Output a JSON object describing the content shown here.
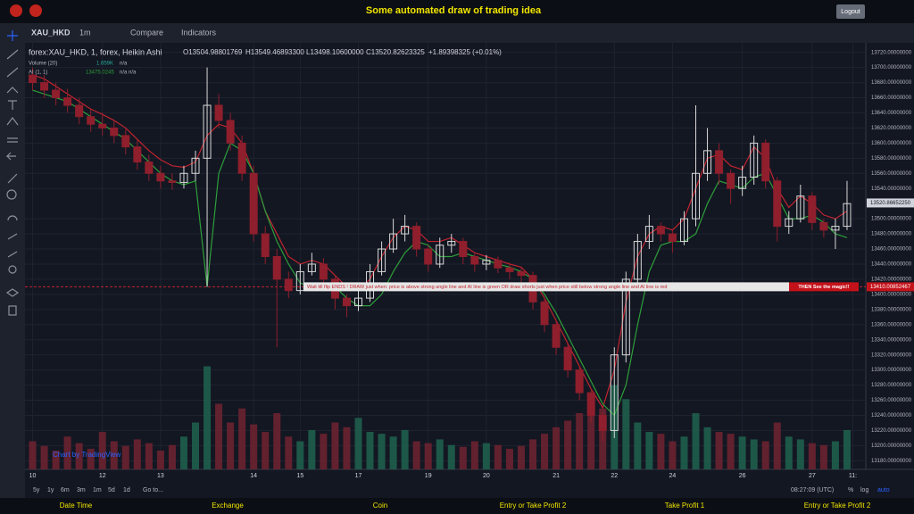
{
  "ui": {
    "title": "Some automated draw of trading idea",
    "logout": "Logout",
    "symbol": "XAU_HKD",
    "interval": "1m",
    "compare": "Compare",
    "indicators": "Indicators",
    "legend": {
      "main": "forex:XAU_HKD, 1, forex, Heikin Ashi",
      "o": "O13504.98801769",
      "h": "H13549.46893300",
      "l": "L13498.10600000",
      "c": "C13520.82623325",
      "chg": "+1.89398325 (+0.01%)",
      "vol": "Volume (20)",
      "vol_val": "1.659K",
      "vol_na": "n/a",
      "ai": "AI (1, 1)",
      "ai_val": "13475.0245",
      "ai_na": "n/a  n/a"
    },
    "ranges": [
      "5y",
      "1y",
      "6m",
      "3m",
      "1m",
      "5d",
      "1d",
      "Go to..."
    ],
    "clock": "08:27:09 (UTC)",
    "pct": "%",
    "log": "log",
    "auto": "auto",
    "watermark": "Chart by TradingView",
    "footer": [
      "Date Time",
      "Exchange",
      "Coin",
      "Entry or Take Profit 2",
      "Take Profit 1",
      "Entry or Take Profit 2"
    ]
  },
  "chart_data": {
    "type": "candlestick",
    "annotation": "Wait till flip ENDS !   DRAW just when:  price is above strong angle line and AI line is green        OR        draw shorts just when price still below strong angle line and AI line is red",
    "annotation_end": "THEN See the magic!!",
    "current_price": {
      "value": 13520.8665225,
      "label": "13520.86652250"
    },
    "level": {
      "value": 13410.00852467,
      "label": "13410.00852467"
    },
    "ylim": [
      13170,
      13730
    ],
    "yticks": [
      {
        "value": 13180,
        "label": "13180.00000000"
      },
      {
        "value": 13200,
        "label": "13200.00000000"
      },
      {
        "value": 13220,
        "label": "13220.00000000"
      },
      {
        "value": 13240,
        "label": "13240.00000000"
      },
      {
        "value": 13260,
        "label": "13260.00000000"
      },
      {
        "value": 13280,
        "label": "13280.00000000"
      },
      {
        "value": 13300,
        "label": "13300.00000000"
      },
      {
        "value": 13320,
        "label": "13320.00000000"
      },
      {
        "value": 13340,
        "label": "13340.00000000"
      },
      {
        "value": 13360,
        "label": "13360.00000000"
      },
      {
        "value": 13380,
        "label": "13380.00000000"
      },
      {
        "value": 13400,
        "label": "13400.00000000"
      },
      {
        "value": 13420,
        "label": "13420.00000000"
      },
      {
        "value": 13440,
        "label": "13440.00000000"
      },
      {
        "value": 13460,
        "label": "13460.00000000"
      },
      {
        "value": 13480,
        "label": "13480.00000000"
      },
      {
        "value": 13500,
        "label": "13500.00000000"
      },
      {
        "value": 13540,
        "label": "13540.00000000"
      },
      {
        "value": 13560,
        "label": "13560.00000000"
      },
      {
        "value": 13580,
        "label": "13580.00000000"
      },
      {
        "value": 13600,
        "label": "13600.00000000"
      },
      {
        "value": 13620,
        "label": "13620.00000000"
      },
      {
        "value": 13640,
        "label": "13640.00000000"
      },
      {
        "value": 13660,
        "label": "13660.00000000"
      },
      {
        "value": 13680,
        "label": "13680.00000000"
      },
      {
        "value": 13700,
        "label": "13700.00000000"
      },
      {
        "value": 13720,
        "label": "13720.00000000"
      }
    ],
    "xlim": [
      -0.5,
      71
    ],
    "xticks": [
      {
        "value": 0,
        "label": "10"
      },
      {
        "value": 6,
        "label": "12"
      },
      {
        "value": 11,
        "label": "13"
      },
      {
        "value": 19,
        "label": "14"
      },
      {
        "value": 23,
        "label": "15"
      },
      {
        "value": 28,
        "label": "17"
      },
      {
        "value": 34,
        "label": "19"
      },
      {
        "value": 39,
        "label": "20"
      },
      {
        "value": 45,
        "label": "21"
      },
      {
        "value": 50,
        "label": "22"
      },
      {
        "value": 55,
        "label": "24"
      },
      {
        "value": 61,
        "label": "26"
      },
      {
        "value": 67,
        "label": "27"
      },
      {
        "value": 70.5,
        "label": "11:"
      }
    ],
    "up_color": "#d8d8d8",
    "down_color": "#8f1f2c",
    "ai_color": "#2e9e3a",
    "ma_color": "#c0242f",
    "candles": [
      [
        13690,
        13700,
        13670,
        13680
      ],
      [
        13680,
        13690,
        13660,
        13670
      ],
      [
        13670,
        13680,
        13650,
        13660
      ],
      [
        13660,
        13672,
        13640,
        13650
      ],
      [
        13650,
        13660,
        13625,
        13635
      ],
      [
        13635,
        13645,
        13615,
        13625
      ],
      [
        13625,
        13640,
        13610,
        13620
      ],
      [
        13620,
        13630,
        13600,
        13610
      ],
      [
        13610,
        13620,
        13585,
        13595
      ],
      [
        13595,
        13605,
        13565,
        13575
      ],
      [
        13575,
        13585,
        13550,
        13560
      ],
      [
        13560,
        13570,
        13540,
        13550
      ],
      [
        13550,
        13560,
        13538,
        13548
      ],
      [
        13548,
        13570,
        13540,
        13560
      ],
      [
        13560,
        13590,
        13550,
        13580
      ],
      [
        13580,
        13700,
        13410,
        13650
      ],
      [
        13650,
        13665,
        13620,
        13630
      ],
      [
        13630,
        13640,
        13590,
        13600
      ],
      [
        13600,
        13610,
        13550,
        13560
      ],
      [
        13560,
        13570,
        13470,
        13480
      ],
      [
        13480,
        13490,
        13440,
        13450
      ],
      [
        13450,
        13460,
        13330,
        13420
      ],
      [
        13420,
        13430,
        13395,
        13405
      ],
      [
        13405,
        13440,
        13400,
        13430
      ],
      [
        13430,
        13455,
        13425,
        13440
      ],
      [
        13440,
        13448,
        13410,
        13420
      ],
      [
        13420,
        13425,
        13380,
        13395
      ],
      [
        13395,
        13400,
        13370,
        13385
      ],
      [
        13385,
        13405,
        13378,
        13395
      ],
      [
        13395,
        13440,
        13390,
        13430
      ],
      [
        13430,
        13470,
        13425,
        13460
      ],
      [
        13460,
        13500,
        13455,
        13480
      ],
      [
        13480,
        13505,
        13470,
        13490
      ],
      [
        13490,
        13495,
        13450,
        13460
      ],
      [
        13460,
        13465,
        13430,
        13440
      ],
      [
        13440,
        13475,
        13435,
        13465
      ],
      [
        13465,
        13480,
        13455,
        13470
      ],
      [
        13470,
        13475,
        13440,
        13450
      ],
      [
        13450,
        13455,
        13430,
        13440
      ],
      [
        13440,
        13452,
        13432,
        13445
      ],
      [
        13445,
        13450,
        13428,
        13435
      ],
      [
        13435,
        13442,
        13420,
        13430
      ],
      [
        13430,
        13436,
        13415,
        13425
      ],
      [
        13425,
        13430,
        13380,
        13390
      ],
      [
        13390,
        13395,
        13350,
        13360
      ],
      [
        13360,
        13365,
        13320,
        13330
      ],
      [
        13330,
        13335,
        13290,
        13300
      ],
      [
        13300,
        13305,
        13260,
        13270
      ],
      [
        13270,
        13275,
        13230,
        13240
      ],
      [
        13240,
        13245,
        13205,
        13220
      ],
      [
        13220,
        13330,
        13210,
        13320
      ],
      [
        13320,
        13430,
        13310,
        13420
      ],
      [
        13420,
        13480,
        13410,
        13470
      ],
      [
        13470,
        13505,
        13460,
        13490
      ],
      [
        13490,
        13495,
        13470,
        13480
      ],
      [
        13480,
        13485,
        13455,
        13470
      ],
      [
        13470,
        13510,
        13465,
        13500
      ],
      [
        13500,
        13650,
        13490,
        13560
      ],
      [
        13560,
        13620,
        13550,
        13590
      ],
      [
        13590,
        13600,
        13545,
        13560
      ],
      [
        13560,
        13565,
        13520,
        13540
      ],
      [
        13540,
        13570,
        13530,
        13555
      ],
      [
        13555,
        13610,
        13545,
        13600
      ],
      [
        13600,
        13605,
        13540,
        13550
      ],
      [
        13550,
        13555,
        13470,
        13490
      ],
      [
        13490,
        13510,
        13480,
        13500
      ],
      [
        13500,
        13545,
        13495,
        13530
      ],
      [
        13530,
        13535,
        13485,
        13495
      ],
      [
        13495,
        13500,
        13475,
        13485
      ],
      [
        13485,
        13500,
        13460,
        13490
      ],
      [
        13490,
        13550,
        13485,
        13520
      ]
    ],
    "ai_line": [
      13670,
      13665,
      13660,
      13655,
      13645,
      13635,
      13625,
      13615,
      13605,
      13590,
      13575,
      13560,
      13550,
      13545,
      13550,
      13410,
      13560,
      13600,
      13590,
      13560,
      13510,
      13470,
      13440,
      13415,
      13410,
      13415,
      13410,
      13395,
      13385,
      13385,
      13400,
      13430,
      13455,
      13470,
      13465,
      13450,
      13450,
      13455,
      13450,
      13445,
      13440,
      13436,
      13430,
      13420,
      13400,
      13375,
      13345,
      13315,
      13285,
      13255,
      13240,
      13280,
      13360,
      13430,
      13465,
      13470,
      13470,
      13480,
      13520,
      13550,
      13545,
      13540,
      13555,
      13560,
      13530,
      13500,
      13500,
      13505,
      13495,
      13480,
      13475
    ],
    "ma_line": [
      13690,
      13685,
      13675,
      13665,
      13655,
      13645,
      13638,
      13630,
      13620,
      13605,
      13590,
      13578,
      13570,
      13568,
      13575,
      13610,
      13625,
      13620,
      13600,
      13560,
      13510,
      13480,
      13450,
      13440,
      13445,
      13440,
      13425,
      13410,
      13405,
      13420,
      13450,
      13475,
      13490,
      13485,
      13470,
      13470,
      13475,
      13465,
      13455,
      13450,
      13445,
      13440,
      13436,
      13420,
      13395,
      13365,
      13335,
      13305,
      13275,
      13250,
      13300,
      13390,
      13450,
      13480,
      13490,
      13485,
      13500,
      13540,
      13580,
      13585,
      13570,
      13565,
      13595,
      13580,
      13540,
      13515,
      13530,
      13520,
      13505,
      13500,
      13510
    ],
    "vlim": [
      0,
      1200
    ],
    "volume": [
      300,
      250,
      200,
      350,
      280,
      220,
      400,
      300,
      250,
      320,
      280,
      200,
      260,
      350,
      500,
      1100,
      700,
      500,
      650,
      480,
      400,
      600,
      350,
      300,
      420,
      380,
      500,
      450,
      550,
      400,
      380,
      350,
      420,
      300,
      280,
      320,
      260,
      240,
      300,
      280,
      260,
      220,
      250,
      320,
      380,
      450,
      520,
      600,
      700,
      650,
      900,
      750,
      500,
      400,
      380,
      300,
      350,
      600,
      450,
      400,
      380,
      350,
      320,
      300,
      500,
      350,
      320,
      280,
      260,
      300,
      420
    ]
  }
}
